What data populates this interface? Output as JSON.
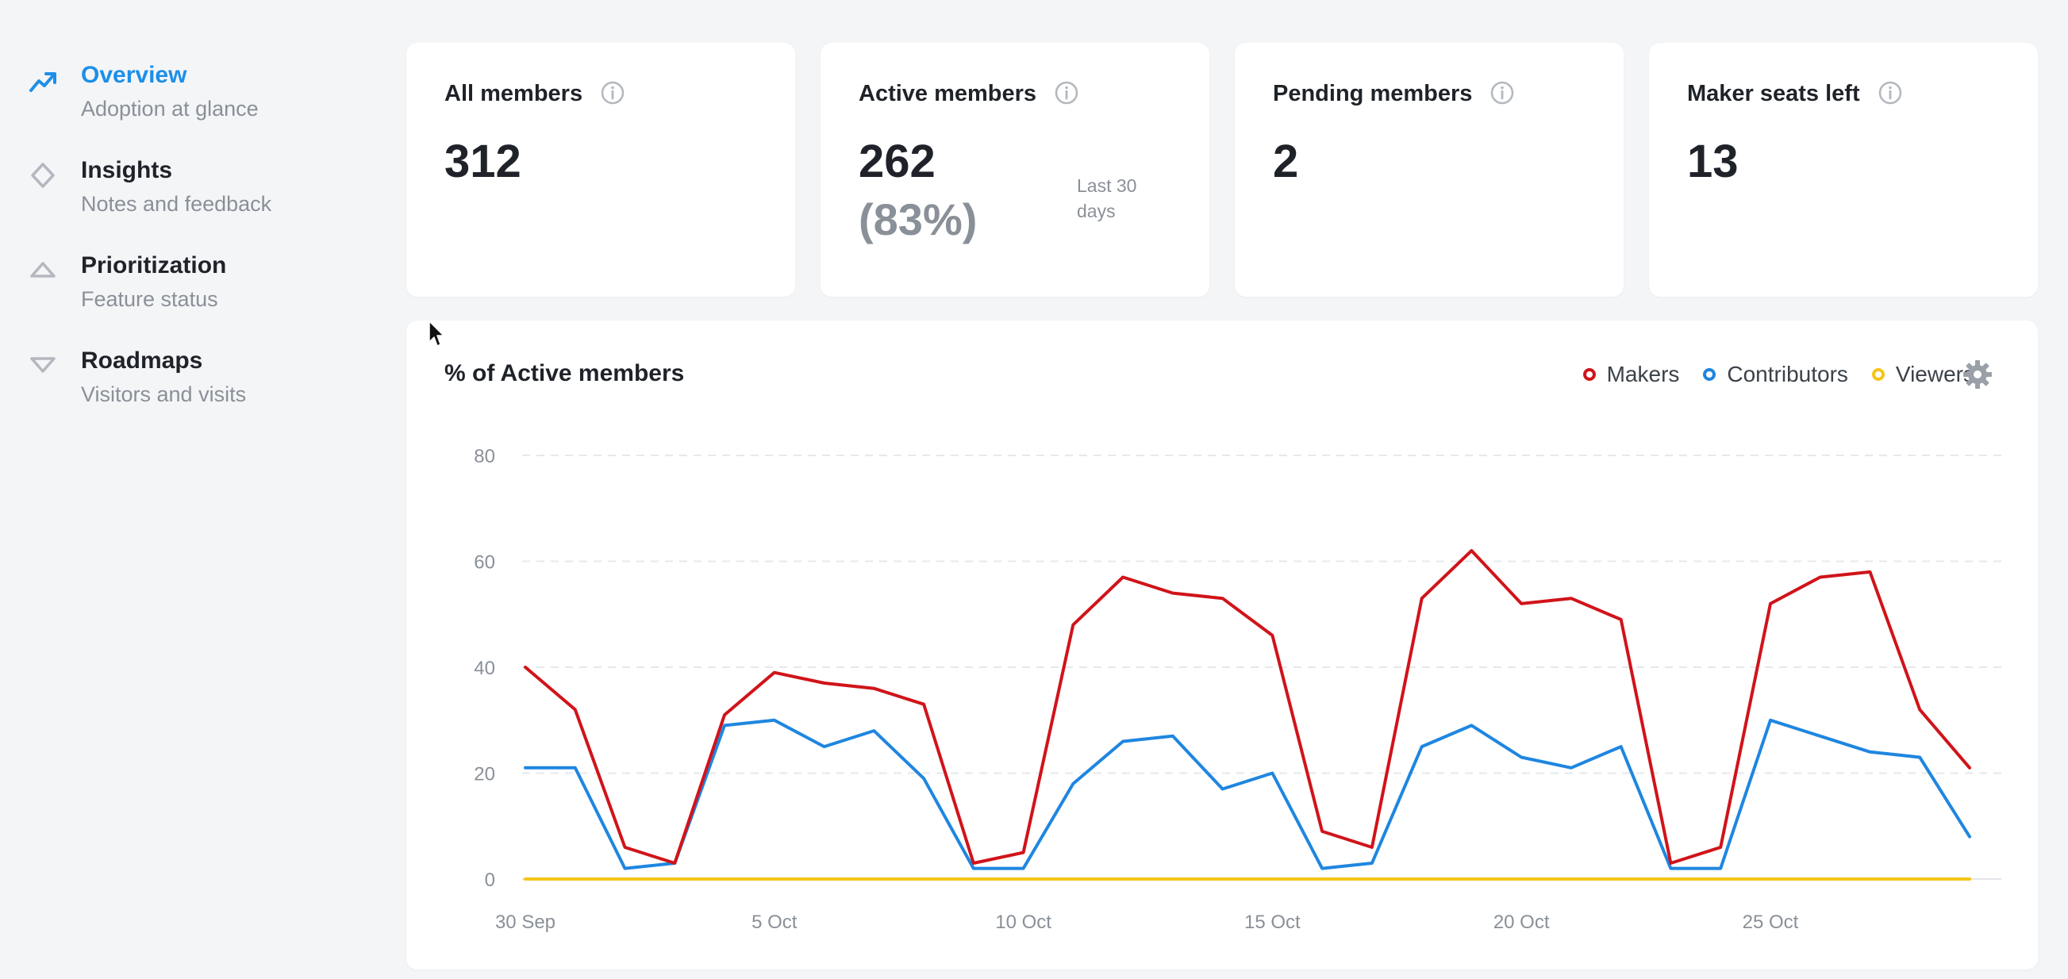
{
  "sidebar": {
    "items": [
      {
        "title": "Overview",
        "subtitle": "Adoption at glance",
        "icon": "trend-up-icon",
        "active": true
      },
      {
        "title": "Insights",
        "subtitle": "Notes and feedback",
        "icon": "diamond-icon",
        "active": false
      },
      {
        "title": "Prioritization",
        "subtitle": "Feature status",
        "icon": "triangle-up-icon",
        "active": false
      },
      {
        "title": "Roadmaps",
        "subtitle": "Visitors and visits",
        "icon": "triangle-down-icon",
        "active": false
      }
    ]
  },
  "stats": {
    "all_members": {
      "title": "All members",
      "value": "312"
    },
    "active_members": {
      "title": "Active members",
      "value": "262",
      "percent": "(83%)",
      "period": "Last 30 days"
    },
    "pending_members": {
      "title": "Pending members",
      "value": "2"
    },
    "maker_seats": {
      "title": "Maker seats left",
      "value": "13"
    }
  },
  "colors": {
    "accent": "#1d8fe8",
    "makers": "#d0141a",
    "contributors": "#1f86e0",
    "viewers": "#f5c518"
  },
  "chart_data": {
    "type": "line",
    "title": "% of Active members",
    "xlabel": "",
    "ylabel": "",
    "x": [
      "30 Sep",
      "1 Oct",
      "2 Oct",
      "3 Oct",
      "4 Oct",
      "5 Oct",
      "6 Oct",
      "7 Oct",
      "8 Oct",
      "9 Oct",
      "10 Oct",
      "11 Oct",
      "12 Oct",
      "13 Oct",
      "14 Oct",
      "15 Oct",
      "16 Oct",
      "17 Oct",
      "18 Oct",
      "19 Oct",
      "20 Oct",
      "21 Oct",
      "22 Oct",
      "23 Oct",
      "24 Oct",
      "25 Oct",
      "26 Oct",
      "27 Oct",
      "28 Oct",
      "29 Oct"
    ],
    "x_ticks": [
      "30 Sep",
      "5 Oct",
      "10 Oct",
      "15 Oct",
      "20 Oct",
      "25 Oct"
    ],
    "y_ticks": [
      0,
      20,
      40,
      60,
      80
    ],
    "ylim": [
      0,
      80
    ],
    "grid": true,
    "legend_position": "top-right",
    "series": [
      {
        "name": "Makers",
        "color": "#d0141a",
        "values": [
          40,
          32,
          6,
          3,
          31,
          39,
          37,
          36,
          33,
          3,
          5,
          48,
          57,
          54,
          53,
          46,
          9,
          6,
          53,
          62,
          52,
          53,
          49,
          3,
          6,
          52,
          57,
          58,
          32,
          21
        ]
      },
      {
        "name": "Contributors",
        "color": "#1f86e0",
        "values": [
          21,
          21,
          2,
          3,
          29,
          30,
          25,
          28,
          19,
          2,
          2,
          18,
          26,
          27,
          17,
          20,
          2,
          3,
          25,
          29,
          23,
          21,
          25,
          2,
          2,
          30,
          27,
          24,
          23,
          8
        ]
      },
      {
        "name": "Viewers",
        "color": "#f5c518",
        "values": [
          0,
          0,
          0,
          0,
          0,
          0,
          0,
          0,
          0,
          0,
          0,
          0,
          0,
          0,
          0,
          0,
          0,
          0,
          0,
          0,
          0,
          0,
          0,
          0,
          0,
          0,
          0,
          0,
          0,
          0
        ]
      }
    ]
  }
}
